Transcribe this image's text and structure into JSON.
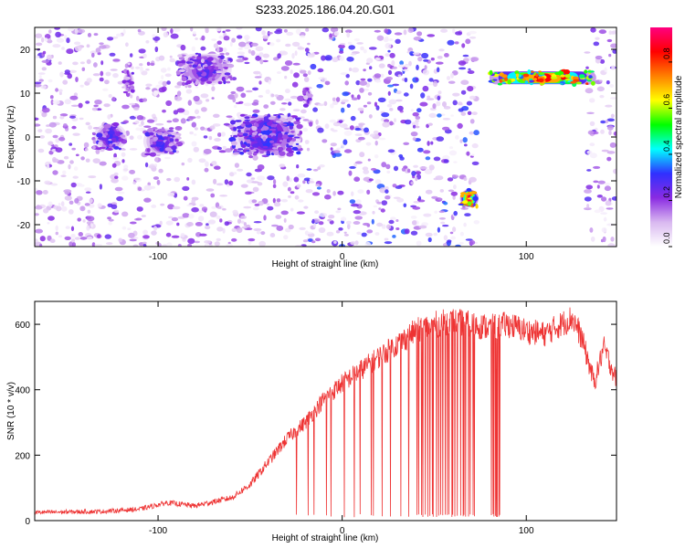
{
  "chart_data": [
    {
      "type": "heatmap",
      "title": "S233.2025.186.04.20.G01",
      "xlabel": "Height of straight line (km)",
      "ylabel": "Frequency (Hz)",
      "xlim": [
        -167,
        149
      ],
      "ylim": [
        -25,
        25
      ],
      "xticks": [
        -100,
        0,
        100
      ],
      "xtick_labels": [
        "-100",
        "0",
        "100"
      ],
      "yticks": [
        -20,
        -10,
        0,
        10,
        20
      ],
      "ytick_labels": [
        "-20",
        "-10",
        "0",
        "10",
        "20"
      ],
      "colorbar": {
        "label": "Normalized spectral amplitude",
        "range": [
          0,
          0.95
        ],
        "ticks": [
          0.0,
          0.2,
          0.4,
          0.6,
          0.8
        ],
        "tick_labels": [
          "0.0",
          "0.2",
          "0.4",
          "0.6",
          "0.8"
        ],
        "colors": [
          "#ffffff",
          "#d9b8f0",
          "#8a2be2",
          "#3030ff",
          "#00ffff",
          "#00ff00",
          "#ffff00",
          "#ff8000",
          "#ff0000",
          "#ff0080"
        ]
      },
      "noise_regions": [
        {
          "x": [
            -167,
            -20
          ],
          "y": [
            -25,
            25
          ],
          "level": 0.12
        },
        {
          "x": [
            -20,
            73
          ],
          "y": [
            -25,
            25
          ],
          "level": 0.16
        },
        {
          "x": [
            133,
            149
          ],
          "y": [
            -25,
            25
          ],
          "level": 0.14
        }
      ],
      "features": [
        {
          "x": [
            -135,
            -117
          ],
          "y": [
            -3,
            3
          ],
          "peak": 0.3
        },
        {
          "x": [
            -108,
            -88
          ],
          "y": [
            -4,
            2
          ],
          "peak": 0.3
        },
        {
          "x": [
            -89,
            -60
          ],
          "y": [
            12,
            19
          ],
          "peak": 0.28
        },
        {
          "x": [
            -60,
            -22
          ],
          "y": [
            -4,
            5
          ],
          "peak": 0.32
        },
        {
          "x": [
            -119,
            -113
          ],
          "y": [
            10,
            15
          ],
          "peak": 0.25
        },
        {
          "x": [
            -21,
            -16
          ],
          "y": [
            7,
            11
          ],
          "peak": 0.25
        },
        {
          "x": [
            64,
            74
          ],
          "y": [
            -16,
            -12
          ],
          "peak": 0.9
        },
        {
          "x": [
            80,
            138
          ],
          "y": [
            12,
            15
          ],
          "peak": 0.85
        }
      ]
    },
    {
      "type": "line",
      "xlabel": "Height of straight line (km)",
      "ylabel": "SNR (10 * v/v)",
      "xlim": [
        -167,
        149
      ],
      "ylim": [
        0,
        670
      ],
      "xticks": [
        -100,
        0,
        100
      ],
      "xtick_labels": [
        "-100",
        "0",
        "100"
      ],
      "yticks": [
        0,
        200,
        400,
        600
      ],
      "ytick_labels": [
        "0",
        "200",
        "400",
        "600"
      ],
      "color": "#ee3333",
      "envelope": [
        {
          "x": -167,
          "y": 25
        },
        {
          "x": -130,
          "y": 28
        },
        {
          "x": -110,
          "y": 35
        },
        {
          "x": -95,
          "y": 55
        },
        {
          "x": -80,
          "y": 45
        },
        {
          "x": -60,
          "y": 70
        },
        {
          "x": -50,
          "y": 110
        },
        {
          "x": -40,
          "y": 180
        },
        {
          "x": -30,
          "y": 250
        },
        {
          "x": -20,
          "y": 300
        },
        {
          "x": -10,
          "y": 370
        },
        {
          "x": 0,
          "y": 420
        },
        {
          "x": 10,
          "y": 460
        },
        {
          "x": 20,
          "y": 500
        },
        {
          "x": 30,
          "y": 540
        },
        {
          "x": 40,
          "y": 580
        },
        {
          "x": 50,
          "y": 600
        },
        {
          "x": 60,
          "y": 610
        },
        {
          "x": 70,
          "y": 600
        },
        {
          "x": 80,
          "y": 590
        },
        {
          "x": 90,
          "y": 600
        },
        {
          "x": 100,
          "y": 580
        },
        {
          "x": 110,
          "y": 570
        },
        {
          "x": 125,
          "y": 620
        },
        {
          "x": 130,
          "y": 560
        },
        {
          "x": 137,
          "y": 420
        },
        {
          "x": 142,
          "y": 530
        },
        {
          "x": 149,
          "y": 430
        }
      ],
      "dropouts": [
        {
          "x": [
            -25,
            40
          ],
          "count": 14,
          "min": 10
        },
        {
          "x": [
            40,
            73
          ],
          "count": 28,
          "min": 10
        },
        {
          "x": [
            81,
            86
          ],
          "count": 8,
          "min": 10
        }
      ]
    }
  ]
}
